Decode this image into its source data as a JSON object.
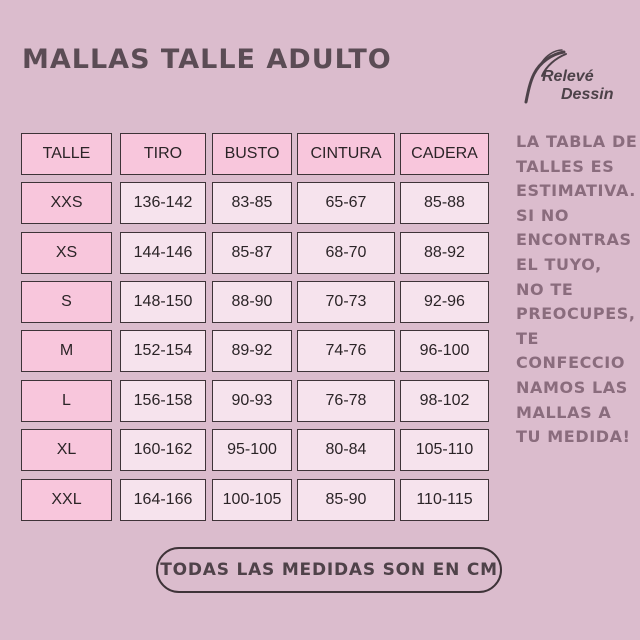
{
  "title": "MALLAS TALLE ADULTO",
  "logo": {
    "line1": "Relevé",
    "line2": "Dessin"
  },
  "table": {
    "headers": [
      "TALLE",
      "TIRO",
      "BUSTO",
      "CINTURA",
      "CADERA"
    ],
    "rows": [
      [
        "XXS",
        "136-142",
        "83-85",
        "65-67",
        "85-88"
      ],
      [
        "XS",
        "144-146",
        "85-87",
        "68-70",
        "88-92"
      ],
      [
        "S",
        "148-150",
        "88-90",
        "70-73",
        "92-96"
      ],
      [
        "M",
        "152-154",
        "89-92",
        "74-76",
        "96-100"
      ],
      [
        "L",
        "156-158",
        "90-93",
        "76-78",
        "98-102"
      ],
      [
        "XL",
        "160-162",
        "95-100",
        "80-84",
        "105-110"
      ],
      [
        "XXL",
        "164-166",
        "100-105",
        "85-90",
        "110-115"
      ]
    ]
  },
  "side_note_lines": [
    "LA TABLA DE",
    "TALLES ES",
    "ESTIMATIVA.",
    "SI NO",
    "ENCONTRAS",
    "EL TUYO,",
    "NO TE",
    "PREOCUPES,",
    "TE",
    "CONFECCIO",
    "NAMOS LAS",
    "MALLAS A",
    "TU MEDIDA!"
  ],
  "footer_pill": "TODAS LAS MEDIDAS SON EN CM",
  "colors": {
    "background": "#dbbccd",
    "header_cell": "#f8c6dc",
    "body_cell": "#f6e3ed",
    "side_text": "#8a6c7d"
  }
}
